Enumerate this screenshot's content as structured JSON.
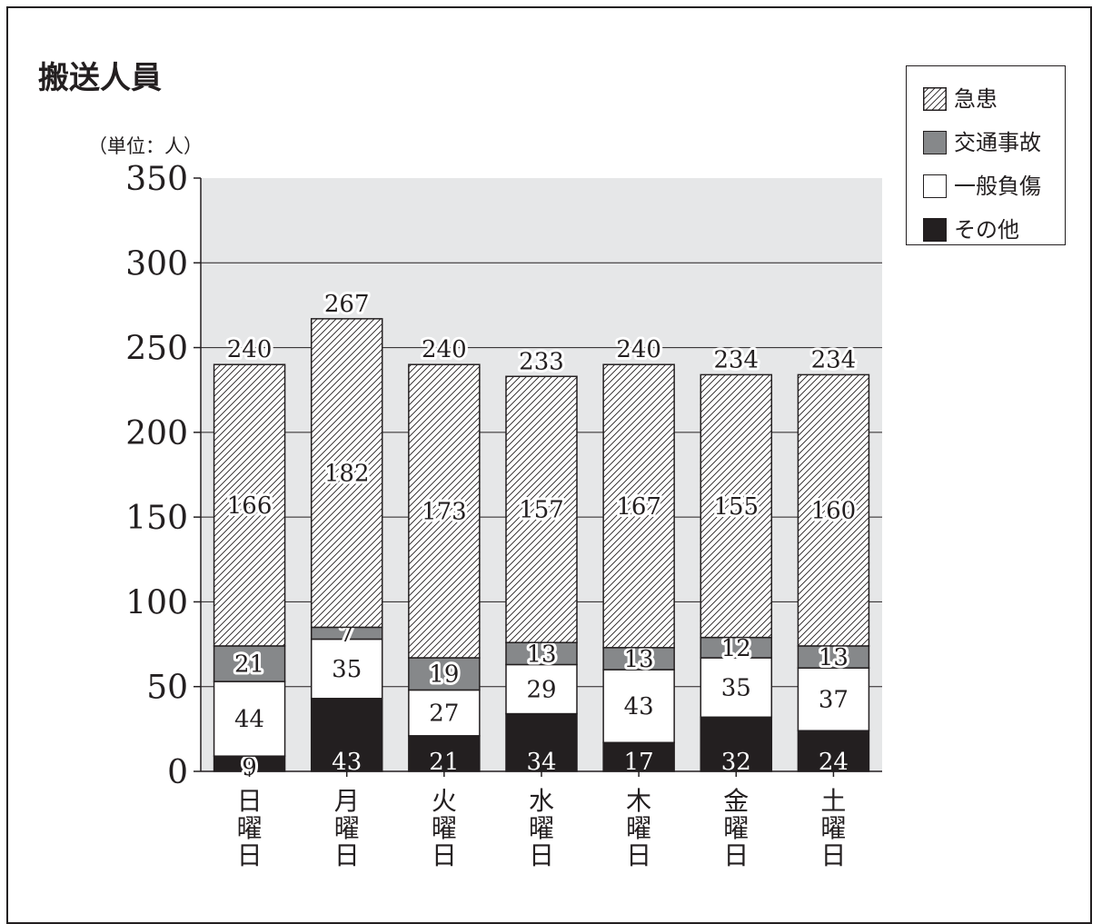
{
  "title": "搬送人員",
  "unit_label": "（単位：人）",
  "legend": [
    {
      "label": "急患",
      "key": "kyukan",
      "fill": "hatch"
    },
    {
      "label": "交通事故",
      "key": "kotsu",
      "fill": "#86888a"
    },
    {
      "label": "一般負傷",
      "key": "ippan",
      "fill": "#ffffff"
    },
    {
      "label": "その他",
      "key": "sonota",
      "fill": "#231f20"
    }
  ],
  "chart_data": {
    "type": "bar",
    "stacked": true,
    "title": "搬送人員",
    "ylabel": "（単位：人）",
    "ylim": [
      0,
      350
    ],
    "yticks": [
      0,
      50,
      100,
      150,
      200,
      250,
      300,
      350
    ],
    "grid": true,
    "legend_position": "top-right",
    "background_color": "#e6e7e8",
    "categories": [
      "日曜日",
      "月曜日",
      "火曜日",
      "水曜日",
      "木曜日",
      "金曜日",
      "土曜日"
    ],
    "series": [
      {
        "name": "その他",
        "color": "#231f20",
        "values": [
          9,
          43,
          21,
          34,
          17,
          32,
          24
        ]
      },
      {
        "name": "一般負傷",
        "color": "#ffffff",
        "values": [
          44,
          35,
          27,
          29,
          43,
          35,
          37
        ]
      },
      {
        "name": "交通事故",
        "color": "#86888a",
        "values": [
          21,
          7,
          19,
          13,
          13,
          12,
          13
        ]
      },
      {
        "name": "急患",
        "color": "hatch",
        "values": [
          166,
          182,
          173,
          157,
          167,
          155,
          160
        ]
      }
    ],
    "totals": [
      240,
      267,
      240,
      233,
      240,
      234,
      234
    ]
  }
}
